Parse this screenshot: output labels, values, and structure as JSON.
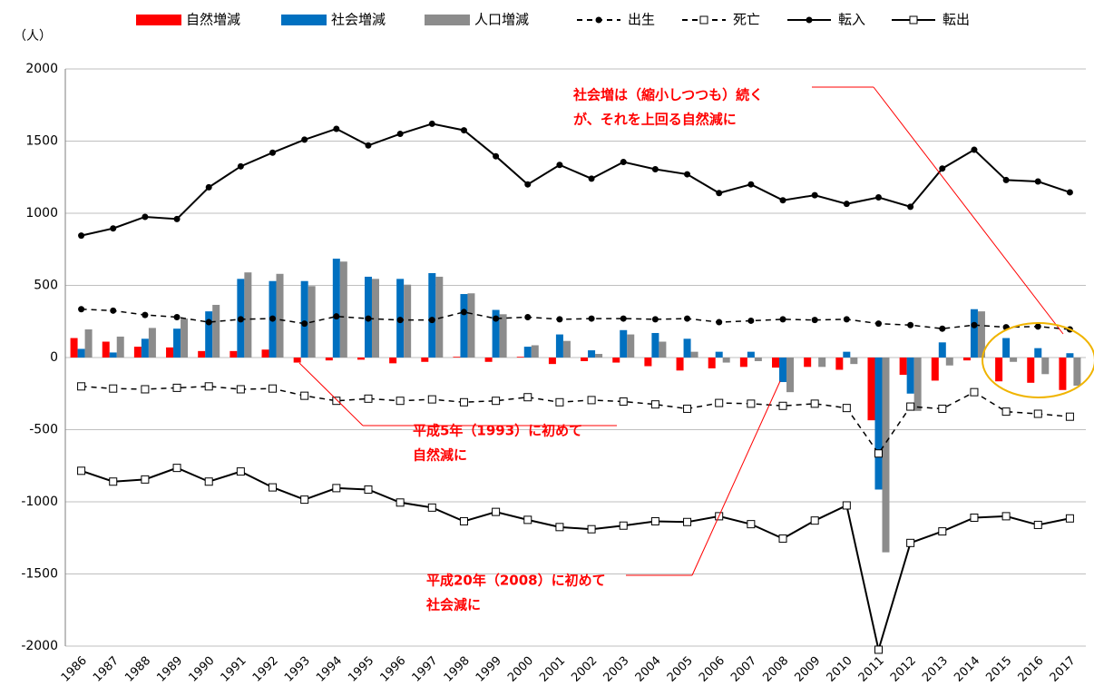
{
  "chart_data": {
    "type": "combo",
    "y_label": "（人）",
    "categories": [
      "1986",
      "1987",
      "1988",
      "1989",
      "1990",
      "1991",
      "1992",
      "1993",
      "1994",
      "1995",
      "1996",
      "1997",
      "1998",
      "1999",
      "2000",
      "2001",
      "2002",
      "2003",
      "2004",
      "2005",
      "2006",
      "2007",
      "2008",
      "2009",
      "2010",
      "2011",
      "2012",
      "2013",
      "2014",
      "2015",
      "2016",
      "2017"
    ],
    "ylim": [
      -2000,
      2000
    ],
    "yticks": [
      -2000,
      -1500,
      -1000,
      -500,
      0,
      500,
      1000,
      1500,
      2000
    ],
    "grid": true,
    "legend": "top",
    "series": [
      {
        "name": "自然増減",
        "kind": "bar",
        "color": "#ff0000",
        "values": [
          135,
          110,
          75,
          70,
          45,
          45,
          55,
          -35,
          -20,
          -15,
          -40,
          -30,
          5,
          -30,
          5,
          -45,
          -25,
          -35,
          -60,
          -90,
          -75,
          -65,
          -70,
          -65,
          -85,
          -435,
          -120,
          -160,
          -20,
          -165,
          -175,
          -225
        ]
      },
      {
        "name": "社会増減",
        "kind": "bar",
        "color": "#0070c0",
        "values": [
          60,
          35,
          130,
          200,
          320,
          545,
          530,
          530,
          685,
          560,
          545,
          585,
          440,
          330,
          75,
          160,
          50,
          190,
          170,
          130,
          40,
          40,
          -170,
          0,
          40,
          -915,
          -250,
          105,
          335,
          135,
          65,
          30
        ]
      },
      {
        "name": "人口増減",
        "kind": "bar",
        "color": "#8c8c8c",
        "values": [
          195,
          145,
          205,
          270,
          365,
          590,
          580,
          495,
          665,
          545,
          505,
          560,
          445,
          300,
          85,
          115,
          25,
          160,
          110,
          40,
          -35,
          -25,
          -240,
          -65,
          -45,
          -1350,
          -370,
          -55,
          320,
          -30,
          -115,
          -195
        ]
      },
      {
        "name": "出生",
        "kind": "line",
        "dash": true,
        "marker": "dot",
        "color": "#000000",
        "values": [
          335,
          325,
          295,
          280,
          245,
          265,
          270,
          235,
          285,
          270,
          260,
          260,
          315,
          270,
          280,
          265,
          270,
          270,
          265,
          270,
          245,
          255,
          265,
          260,
          265,
          235,
          225,
          200,
          225,
          210,
          215,
          195
        ]
      },
      {
        "name": "死亡",
        "kind": "line",
        "dash": true,
        "marker": "square",
        "color": "#000000",
        "values": [
          -200,
          -215,
          -220,
          -210,
          -200,
          -220,
          -215,
          -265,
          -300,
          -285,
          -300,
          -290,
          -310,
          -300,
          -275,
          -310,
          -295,
          -305,
          -325,
          -355,
          -315,
          -320,
          -335,
          -320,
          -350,
          -665,
          -340,
          -355,
          -240,
          -375,
          -390,
          -410
        ]
      },
      {
        "name": "転入",
        "kind": "line",
        "dash": false,
        "marker": "dot",
        "color": "#000000",
        "values": [
          845,
          895,
          975,
          960,
          1180,
          1325,
          1420,
          1510,
          1585,
          1470,
          1550,
          1620,
          1575,
          1395,
          1200,
          1335,
          1240,
          1355,
          1305,
          1270,
          1140,
          1200,
          1090,
          1125,
          1065,
          1110,
          1045,
          1310,
          1440,
          1230,
          1220,
          1145
        ]
      },
      {
        "name": "転出",
        "kind": "line",
        "dash": false,
        "marker": "square",
        "color": "#000000",
        "values": [
          -785,
          -860,
          -845,
          -765,
          -860,
          -790,
          -900,
          -985,
          -905,
          -915,
          -1005,
          -1040,
          -1135,
          -1070,
          -1125,
          -1175,
          -1190,
          -1165,
          -1135,
          -1140,
          -1100,
          -1155,
          -1255,
          -1130,
          -1025,
          -2025,
          -1285,
          -1205,
          -1110,
          -1100,
          -1160,
          -1115
        ]
      }
    ],
    "annotations": [
      {
        "lines": [
          "社会増は（縮小しつつも）続く",
          "が、それを上回る自然減に"
        ],
        "color": "#ff0000"
      },
      {
        "lines": [
          "平成5年（1993）に初めて",
          "自然減に"
        ],
        "color": "#ff0000"
      },
      {
        "lines": [
          "平成20年（2008）に初めて",
          "社会減に"
        ],
        "color": "#ff0000"
      }
    ]
  }
}
